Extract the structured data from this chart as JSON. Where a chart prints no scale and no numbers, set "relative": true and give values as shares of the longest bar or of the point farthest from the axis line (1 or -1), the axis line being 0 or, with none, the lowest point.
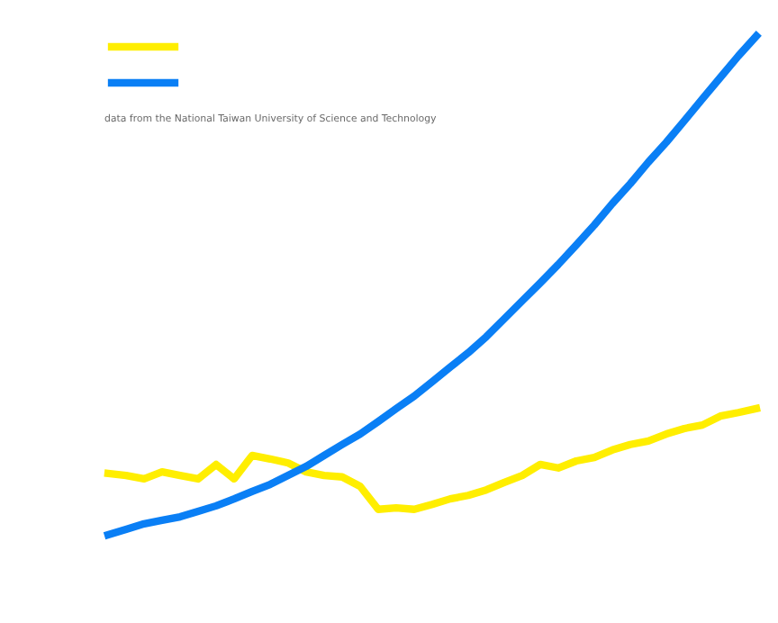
{
  "chart_data": {
    "type": "line",
    "relative": true,
    "categories": [
      null,
      null,
      null,
      null,
      null,
      null,
      null,
      null,
      null,
      null,
      null,
      null,
      null,
      null,
      null,
      null,
      null,
      null,
      null,
      null,
      null,
      null,
      null,
      null,
      null,
      null,
      null,
      null,
      null,
      null,
      null,
      null,
      null,
      null,
      null,
      null,
      null
    ],
    "series": [
      {
        "color": "#ffee00",
        "values": [
          0.123,
          0.119,
          0.112,
          0.126,
          0.119,
          0.112,
          0.141,
          0.112,
          0.159,
          0.152,
          0.144,
          0.126,
          0.119,
          0.116,
          0.097,
          0.051,
          0.054,
          0.051,
          0.061,
          0.072,
          0.079,
          0.09,
          0.105,
          0.119,
          0.141,
          0.134,
          0.148,
          0.155,
          0.17,
          0.181,
          0.188,
          0.202,
          0.213,
          0.22,
          0.238,
          0.245,
          0.253
        ]
      },
      {
        "color": "#0a7ff5",
        "values": [
          0,
          0.011,
          0.022,
          0.029,
          0.036,
          0.047,
          0.058,
          0.072,
          0.087,
          0.101,
          0.119,
          0.137,
          0.159,
          0.181,
          0.202,
          0.227,
          0.253,
          0.278,
          0.307,
          0.336,
          0.365,
          0.397,
          0.433,
          0.469,
          0.505,
          0.542,
          0.581,
          0.621,
          0.664,
          0.704,
          0.747,
          0.787,
          0.83,
          0.874,
          0.917,
          0.96,
          1.0
        ]
      }
    ],
    "annotations": [
      "data from the National Taiwan University of Science and Technology"
    ],
    "marker": "none",
    "line_style": "solid"
  }
}
